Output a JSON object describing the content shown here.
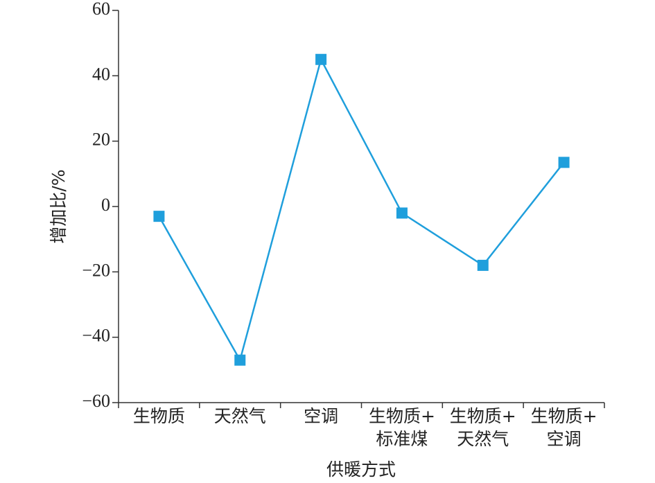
{
  "chart_data": {
    "type": "line",
    "ylabel": "增加比/%",
    "xlabel": "供暖方式",
    "categories": [
      [
        "生物质"
      ],
      [
        "天然气"
      ],
      [
        "空调"
      ],
      [
        "生物质+",
        "标准煤"
      ],
      [
        "生物质+",
        "天然气"
      ],
      [
        "生物质+",
        "空调"
      ]
    ],
    "values": [
      -3,
      -47,
      45,
      -2,
      -18,
      13.5
    ],
    "color": "#1f9fdc",
    "ylim": [
      -60,
      60
    ],
    "yticks": [
      {
        "value": -60,
        "label": "−60"
      },
      {
        "value": -40,
        "label": "−40"
      },
      {
        "value": -20,
        "label": "−20"
      },
      0,
      20,
      40,
      60
    ]
  }
}
